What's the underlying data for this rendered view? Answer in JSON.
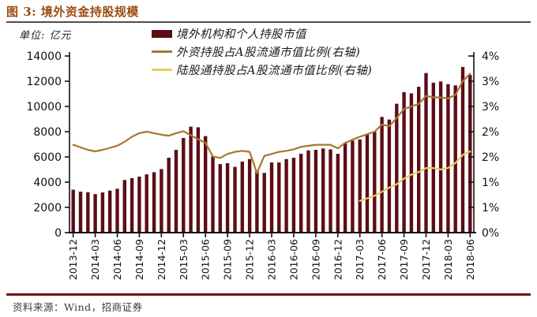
{
  "figure": {
    "title": "图 3: 境外资金持股规模",
    "unit_label": "单位: 亿元",
    "source": "资料来源：Wind，招商证券"
  },
  "colors": {
    "title": "#9c4a10",
    "title_rule": "#4d4d4d",
    "bottom_rule": "#6b1210",
    "bar": "#5c0d16",
    "foreign_line": "#a8762f",
    "hk_connect_line": "#e9cb5f",
    "axis": "#111111"
  },
  "legend": [
    {
      "label": "境外机构和个人持股市值",
      "type": "bar",
      "color": "#5c0d16"
    },
    {
      "label": "外资持股占A股流通市值比例(右轴)",
      "type": "line",
      "color": "#a8762f"
    },
    {
      "label": "陆股通持股占A股流通市值比例(右轴)",
      "type": "line",
      "color": "#e9cb5f"
    }
  ],
  "chart_data": {
    "type": "bar",
    "subtype": "bar+line dual axis",
    "frequency": "monthly",
    "grid": false,
    "legend_position": "top",
    "months": [
      "2013-12",
      "2014-01",
      "2014-02",
      "2014-03",
      "2014-04",
      "2014-05",
      "2014-06",
      "2014-07",
      "2014-08",
      "2014-09",
      "2014-10",
      "2014-11",
      "2014-12",
      "2015-01",
      "2015-02",
      "2015-03",
      "2015-04",
      "2015-05",
      "2015-06",
      "2015-07",
      "2015-08",
      "2015-09",
      "2015-10",
      "2015-11",
      "2015-12",
      "2016-01",
      "2016-02",
      "2016-03",
      "2016-04",
      "2016-05",
      "2016-06",
      "2016-07",
      "2016-08",
      "2016-09",
      "2016-10",
      "2016-11",
      "2016-12",
      "2017-01",
      "2017-02",
      "2017-03",
      "2017-04",
      "2017-05",
      "2017-06",
      "2017-07",
      "2017-08",
      "2017-09",
      "2017-10",
      "2017-11",
      "2017-12",
      "2018-01",
      "2018-02",
      "2018-03",
      "2018-04",
      "2018-05",
      "2018-06"
    ],
    "x_tick_labels": [
      "2013-12",
      "2014-03",
      "2014-06",
      "2014-09",
      "2014-12",
      "2015-03",
      "2015-06",
      "2015-09",
      "2015-12",
      "2016-03",
      "2016-06",
      "2016-09",
      "2016-12",
      "2017-03",
      "2017-06",
      "2017-09",
      "2017-12",
      "2018-03",
      "2018-06"
    ],
    "x_tick_every": 3,
    "left_axis": {
      "unit": "亿元",
      "min": 0,
      "max": 14000,
      "tick_step": 2000,
      "tick_labels": [
        "0",
        "2000",
        "4000",
        "6000",
        "8000",
        "10000",
        "12000",
        "14000"
      ]
    },
    "right_axis": {
      "min": 0,
      "actual_max": 3.5,
      "tick_labels": [
        "0%",
        "1%",
        "1%",
        "2%",
        "2%",
        "3%",
        "3%",
        "4%"
      ]
    },
    "series": [
      {
        "name": "境外机构和个人持股市值",
        "type": "bar",
        "axis": "left",
        "color": "#5c0d16",
        "values": [
          3400,
          3250,
          3200,
          3050,
          3180,
          3330,
          3480,
          4170,
          4310,
          4440,
          4620,
          4790,
          5040,
          5940,
          6560,
          7500,
          8400,
          8350,
          7650,
          6050,
          5430,
          5500,
          5210,
          5630,
          5830,
          4890,
          4730,
          5560,
          5560,
          5830,
          5940,
          6250,
          6520,
          6560,
          6670,
          6600,
          6250,
          7080,
          7290,
          7390,
          7810,
          8020,
          9170,
          8960,
          10210,
          11140,
          11040,
          11560,
          12650,
          11880,
          11980,
          11770,
          11670,
          13130,
          12500
        ]
      },
      {
        "name": "外资持股占A股流通市值比例(右轴)",
        "type": "line",
        "axis": "right",
        "color": "#a8762f",
        "values": [
          1.74,
          1.69,
          1.64,
          1.61,
          1.64,
          1.68,
          1.72,
          1.8,
          1.9,
          1.97,
          2.0,
          1.97,
          1.94,
          1.92,
          1.97,
          2.01,
          1.93,
          1.85,
          1.78,
          1.51,
          1.48,
          1.56,
          1.6,
          1.62,
          1.6,
          1.18,
          1.52,
          1.56,
          1.6,
          1.62,
          1.65,
          1.7,
          1.72,
          1.74,
          1.74,
          1.74,
          1.67,
          1.78,
          1.84,
          1.9,
          1.95,
          2.0,
          2.14,
          2.11,
          2.27,
          2.45,
          2.5,
          2.55,
          2.71,
          2.68,
          2.68,
          2.66,
          2.73,
          3.0,
          3.15
        ]
      },
      {
        "name": "陆股通持股占A股流通市值比例(右轴)",
        "type": "line",
        "axis": "right",
        "color": "#e9cb5f",
        "values": [
          null,
          null,
          null,
          null,
          null,
          null,
          null,
          null,
          null,
          null,
          null,
          null,
          null,
          null,
          null,
          null,
          null,
          null,
          null,
          null,
          null,
          null,
          null,
          null,
          null,
          null,
          null,
          null,
          null,
          null,
          null,
          null,
          null,
          null,
          null,
          null,
          null,
          null,
          null,
          0.63,
          0.68,
          0.73,
          0.81,
          0.89,
          0.96,
          1.07,
          1.15,
          1.2,
          1.28,
          1.28,
          1.25,
          1.28,
          1.38,
          1.54,
          1.61
        ]
      }
    ]
  }
}
